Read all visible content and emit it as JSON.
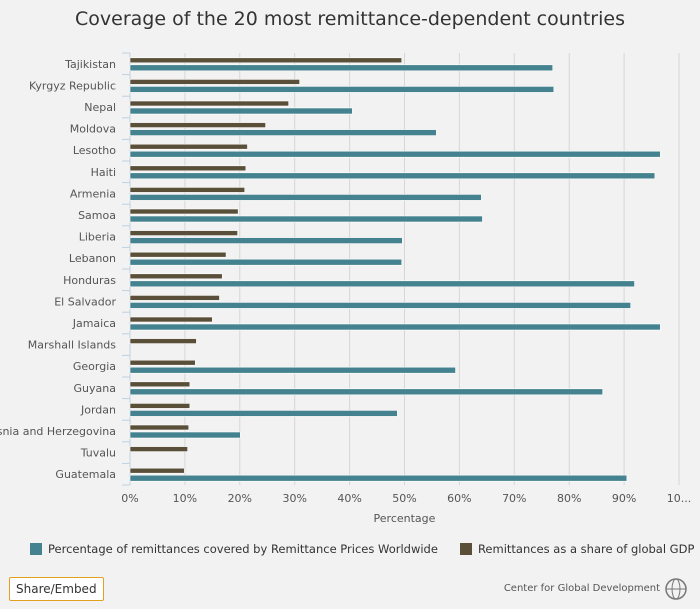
{
  "title": "Coverage of the 20 most remittance-dependent countries",
  "chart_data": {
    "type": "bar",
    "orientation": "horizontal",
    "title": "Coverage of the 20 most remittance-dependent countries",
    "xlabel": "Percentage",
    "ylabel": "",
    "xlim": [
      0,
      100
    ],
    "x_ticks": [
      "0%",
      "10%",
      "20%",
      "30%",
      "40%",
      "50%",
      "60%",
      "70%",
      "80%",
      "90%",
      "10..."
    ],
    "grid": true,
    "legend_position": "bottom",
    "categories": [
      "Tajikistan",
      "Kyrgyz Republic",
      "Nepal",
      "Moldova",
      "Lesotho",
      "Haiti",
      "Armenia",
      "Samoa",
      "Liberia",
      "Lebanon",
      "Honduras",
      "El Salvador",
      "Jamaica",
      "Marshall Islands",
      "Georgia",
      "Guyana",
      "Jordan",
      "Bosnia and Herzegovina",
      "Tuvalu",
      "Guatemala"
    ],
    "series": [
      {
        "name": "Remittances as a share of global GDP",
        "color": "#5a4f38",
        "values": [
          49.5,
          30.9,
          28.9,
          24.7,
          21.4,
          21.1,
          20.9,
          19.7,
          19.6,
          17.5,
          16.8,
          16.3,
          15.0,
          12.1,
          11.9,
          10.9,
          10.9,
          10.7,
          10.5,
          9.9
        ]
      },
      {
        "name": "Percentage of remittances covered by Remittance Prices Worldwide",
        "color": "#43828e",
        "values": [
          77.0,
          77.2,
          40.5,
          55.8,
          96.6,
          95.6,
          64.0,
          64.2,
          49.6,
          49.5,
          91.9,
          91.2,
          96.6,
          null,
          59.3,
          86.1,
          48.7,
          20.1,
          null,
          90.5
        ]
      }
    ]
  },
  "legend": [
    {
      "label": "Percentage of remittances covered by Remittance Prices Worldwide",
      "color": "#43828e"
    },
    {
      "label": "Remittances as a share of global GDP",
      "color": "#5a4f38"
    }
  ],
  "share_label": "Share/Embed",
  "credit": "Center for Global Development"
}
